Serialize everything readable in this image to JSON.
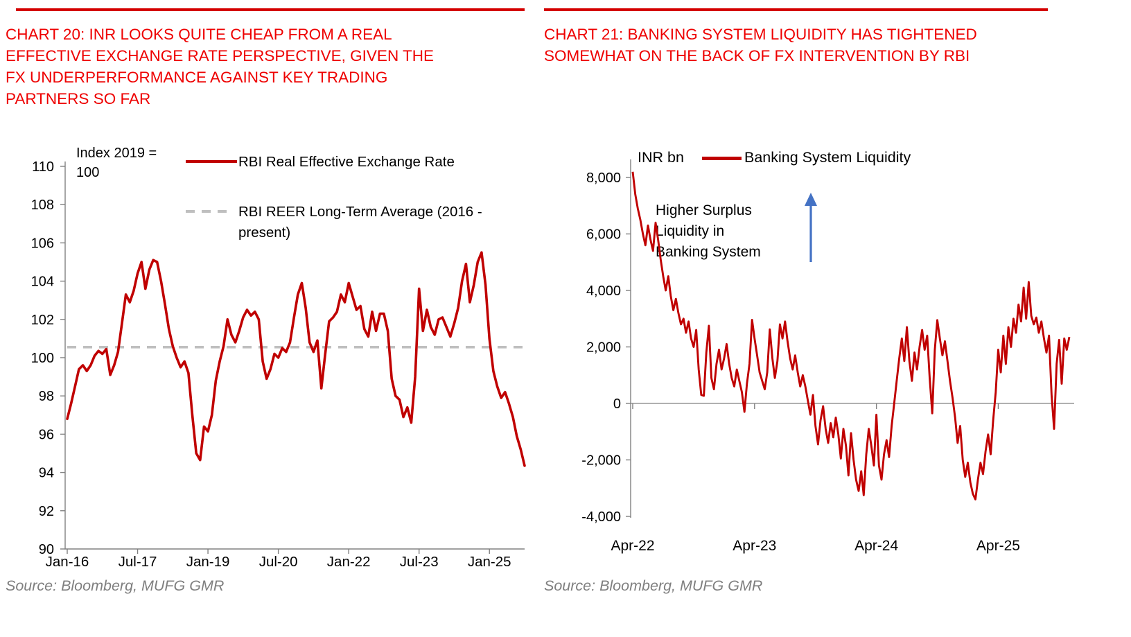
{
  "colors": {
    "title_red": "#EE0000",
    "rule_red": "#D40000",
    "series_red": "#C00000",
    "dashed_gray": "#BFBFBF",
    "axis_gray": "#808080",
    "arrow_blue": "#4472C4",
    "source_gray": "#7F7F7F"
  },
  "charts": [
    {
      "id": "reer",
      "title_lines": [
        "CHART 20: INR LOOKS QUITE CHEAP FROM A REAL",
        "EFFECTIVE EXCHANGE RATE PERSPECTIVE, GIVEN THE",
        "FX UNDERPERFORMANCE AGAINST KEY TRADING",
        "PARTNERS SO FAR"
      ],
      "axis_note_lines": [
        "Index 2019 =",
        "100"
      ],
      "legend": [
        {
          "label": "RBI Real Effective Exchange Rate",
          "style": "solid",
          "color": "#C00000"
        },
        {
          "label_lines": [
            "RBI REER Long-Term Average (2016 -",
            "present)"
          ],
          "style": "dashed",
          "color": "#BFBFBF"
        }
      ],
      "source": "Source: Bloomberg, MUFG GMR",
      "chart_data": {
        "type": "line",
        "title": "INR looks quite cheap from a real effective exchange rate perspective",
        "xlabel": "",
        "ylabel": "Index 2019 = 100",
        "ylim": [
          90,
          110
        ],
        "grid": false,
        "legend_position": "top",
        "x_start": "Jan-16",
        "x_end": "Oct-25",
        "frequency": "monthly",
        "x_tick_labels": [
          "Jan-16",
          "Jul-17",
          "Jan-19",
          "Jul-20",
          "Jan-22",
          "Jul-23",
          "Jan-25"
        ],
        "x_tick_month_index": [
          0,
          18,
          36,
          54,
          72,
          90,
          108
        ],
        "y_ticks": [
          90,
          92,
          94,
          96,
          98,
          100,
          102,
          104,
          106,
          108,
          110
        ],
        "series": [
          {
            "name": "RBI Real Effective Exchange Rate",
            "values": [
              96.8,
              97.6,
              98.5,
              99.4,
              99.6,
              99.3,
              99.6,
              100.1,
              100.35,
              100.2,
              100.45,
              99.1,
              99.6,
              100.3,
              101.8,
              103.3,
              102.9,
              103.5,
              104.4,
              105.0,
              103.6,
              104.6,
              105.1,
              105.0,
              104.0,
              102.8,
              101.5,
              100.6,
              100.0,
              99.5,
              99.8,
              99.2,
              97.0,
              95.0,
              94.65,
              96.4,
              96.15,
              97.0,
              98.8,
              99.8,
              100.6,
              102.0,
              101.2,
              100.8,
              101.4,
              102.1,
              102.5,
              102.2,
              102.4,
              102.0,
              99.8,
              98.9,
              99.4,
              100.2,
              100.0,
              100.5,
              100.3,
              100.8,
              102.1,
              103.3,
              103.9,
              102.6,
              100.8,
              100.3,
              100.9,
              98.4,
              100.2,
              101.9,
              102.1,
              102.4,
              103.3,
              102.9,
              103.9,
              103.2,
              102.5,
              102.7,
              101.5,
              101.1,
              102.4,
              101.4,
              102.3,
              102.3,
              101.4,
              98.9,
              98.0,
              97.8,
              96.9,
              97.4,
              96.6,
              99.0,
              103.6,
              101.4,
              102.5,
              101.6,
              101.2,
              102.0,
              102.1,
              101.6,
              101.1,
              101.8,
              102.6,
              104.0,
              104.9,
              102.9,
              103.8,
              105.0,
              105.5,
              103.8,
              101.0,
              99.3,
              98.5,
              97.9,
              98.2,
              97.6,
              96.9,
              95.9,
              95.2,
              94.35
            ]
          },
          {
            "name": "RBI REER Long-Term Average (2016 - present)",
            "type": "constant",
            "value": 100.55
          }
        ]
      }
    },
    {
      "id": "liquidity",
      "title_lines": [
        "CHART 21: BANKING SYSTEM LIQUIDITY HAS TIGHTENED",
        "SOMEWHAT ON THE BACK OF FX INTERVENTION BY RBI"
      ],
      "unit_label": "INR bn",
      "legend": [
        {
          "label": "Banking System Liquidity",
          "style": "solid",
          "color": "#C00000"
        }
      ],
      "annotation": {
        "lines": [
          "Higher Surplus",
          "Liquidity in",
          "Banking System"
        ],
        "arrow": "up",
        "arrow_color": "#4472C4"
      },
      "source": "Source: Bloomberg, MUFG GMR",
      "chart_data": {
        "type": "line",
        "title": "Banking system liquidity has tightened on the back of FX intervention by RBI",
        "xlabel": "",
        "ylabel": "INR bn",
        "ylim": [
          -4200,
          8600
        ],
        "grid": false,
        "zero_line": true,
        "x_start": "Apr-22",
        "x_end": "Nov-25",
        "frequency": "weekly",
        "x_tick_labels": [
          "Apr-22",
          "Apr-23",
          "Apr-24",
          "Apr-25"
        ],
        "x_tick_point_index": [
          0,
          48,
          96,
          144
        ],
        "y_ticks": [
          -4000,
          -2000,
          0,
          2000,
          4000,
          6000,
          8000
        ],
        "y_tick_labels": [
          "-4,000",
          "-2,000",
          "0",
          "2,000",
          "4,000",
          "6,000",
          "8,000"
        ],
        "series": [
          {
            "name": "Banking System Liquidity",
            "values": [
              8200,
              7400,
              6900,
              6500,
              6000,
              5600,
              6300,
              5800,
              5400,
              6400,
              5800,
              5100,
              4500,
              4000,
              4500,
              3800,
              3300,
              3700,
              3200,
              2800,
              3000,
              2500,
              2900,
              2300,
              2000,
              2600,
              1200,
              300,
              270,
              1800,
              2750,
              900,
              500,
              1400,
              1900,
              1200,
              1600,
              2100,
              1400,
              900,
              600,
              1200,
              800,
              400,
              -300,
              700,
              1400,
              2960,
              2300,
              1700,
              1100,
              800,
              500,
              1100,
              2620,
              1600,
              900,
              1500,
              2800,
              2300,
              2900,
              2200,
              1600,
              1200,
              1700,
              1100,
              600,
              1000,
              600,
              100,
              -400,
              300,
              -800,
              -1450,
              -600,
              -100,
              -900,
              -1400,
              -700,
              -1200,
              -500,
              -1100,
              -1950,
              -900,
              -1500,
              -2550,
              -1050,
              -2000,
              -2700,
              -3100,
              -2400,
              -3250,
              -1800,
              -900,
              -1500,
              -2200,
              -400,
              -2200,
              -2700,
              -1800,
              -1300,
              -1900,
              -800,
              0,
              800,
              1600,
              2300,
              1500,
              2700,
              1500,
              800,
              1800,
              1200,
              2000,
              2600,
              1900,
              2400,
              900,
              -350,
              1900,
              2950,
              2300,
              1700,
              2200,
              1500,
              800,
              200,
              -500,
              -1400,
              -800,
              -2000,
              -2600,
              -2100,
              -2800,
              -3200,
              -3400,
              -2700,
              -2100,
              -2500,
              -1700,
              -1100,
              -1800,
              -600,
              400,
              1900,
              1100,
              2400,
              1400,
              2700,
              2000,
              3000,
              2500,
              3500,
              2900,
              4100,
              3000,
              4300,
              3100,
              2800,
              3040,
              2500,
              2900,
              2300,
              1800,
              2400,
              300,
              -900,
              1400,
              2250,
              700,
              2300,
              1900,
              2350
            ]
          }
        ]
      }
    }
  ]
}
